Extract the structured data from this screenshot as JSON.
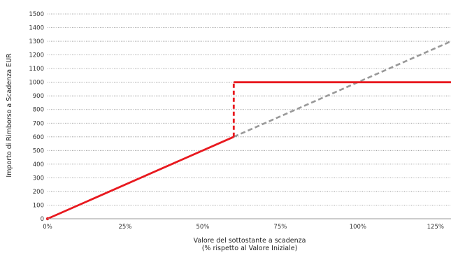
{
  "chart_data": {
    "type": "line",
    "title": "",
    "xlabel_line1": "Valore del sottostante a scadenza",
    "xlabel_line2": "(% rispetto al Valore Iniziale)",
    "ylabel": "Importo di Rimborso a Scadenza EUR",
    "xlim": [
      0,
      130
    ],
    "ylim": [
      0,
      1500
    ],
    "x_ticks": [
      0,
      25,
      50,
      75,
      100,
      125
    ],
    "x_tick_labels": [
      "0%",
      "25%",
      "50%",
      "75%",
      "100%",
      "125%"
    ],
    "y_ticks": [
      0,
      100,
      200,
      300,
      400,
      500,
      600,
      700,
      800,
      900,
      1000,
      1100,
      1200,
      1300,
      1400,
      1500
    ],
    "y_tick_labels": [
      "0",
      "100",
      "200",
      "300",
      "400",
      "500",
      "600",
      "700",
      "800",
      "900",
      "1000",
      "1100",
      "1200",
      "1300",
      "1400",
      "1500"
    ],
    "grid": "horizontal dotted",
    "series": [
      {
        "color": "#e8191f",
        "style": "solid",
        "x": [
          0,
          60
        ],
        "y": [
          0,
          600
        ]
      },
      {
        "color": "#e8191f",
        "style": "dashed",
        "x": [
          60,
          60
        ],
        "y": [
          600,
          1000
        ]
      },
      {
        "color": "#e8191f",
        "style": "solid",
        "x": [
          60,
          130
        ],
        "y": [
          1000,
          1000
        ]
      },
      {
        "color": "#999999",
        "style": "dashed",
        "x": [
          60,
          130
        ],
        "y": [
          600,
          1300
        ]
      }
    ]
  }
}
